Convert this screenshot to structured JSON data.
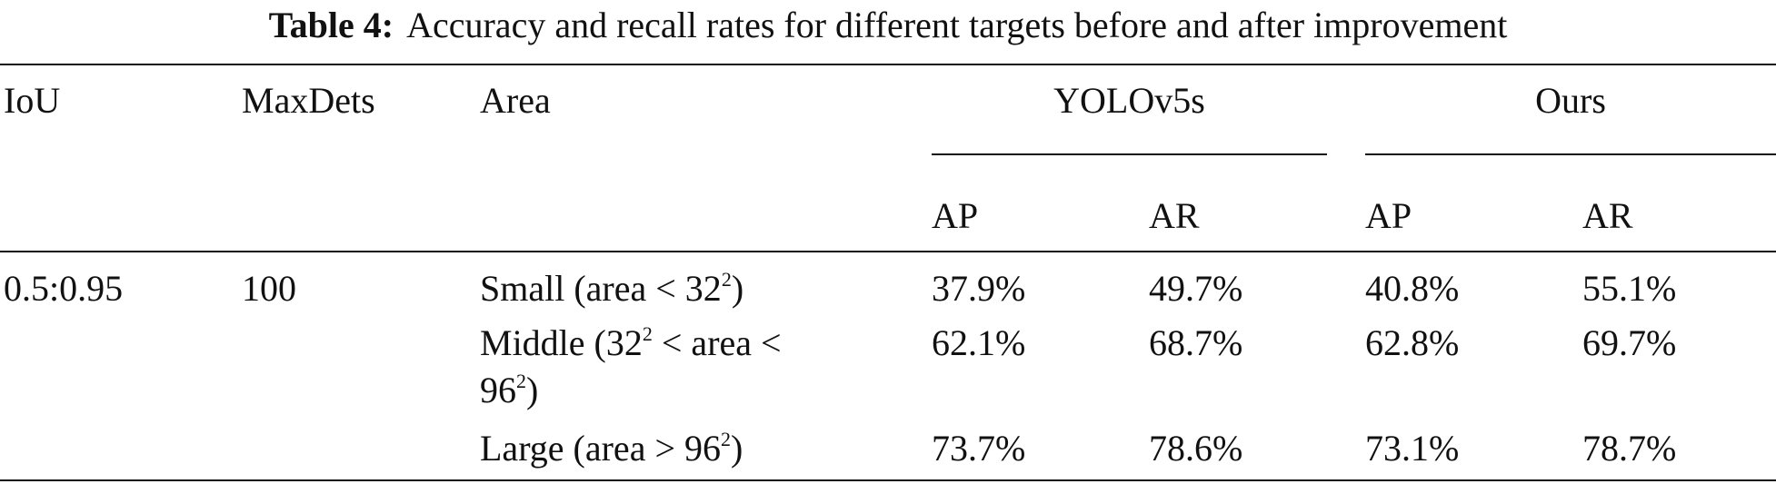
{
  "caption": {
    "label": "Table 4:",
    "text": "Accuracy and recall rates for different targets before and after improvement"
  },
  "table": {
    "headers": {
      "iou": "IoU",
      "maxdets": "MaxDets",
      "area": "Area",
      "group1": "YOLOv5s",
      "group2": "Ours",
      "ap": "AP",
      "ar": "AR"
    },
    "group_value": {
      "iou": "0.5:0.95",
      "maxdets": "100"
    },
    "rows": [
      {
        "area_pre": "Small (area < 32",
        "area_sup": "2",
        "area_post": ")",
        "yolo_ap": "37.9%",
        "yolo_ar": "49.7%",
        "ours_ap": "40.8%",
        "ours_ar": "55.1%"
      },
      {
        "area_line1_pre": "Middle (32",
        "area_line1_sup": "2",
        "area_line1_post": " < area <",
        "area_line2_pre": "96",
        "area_line2_sup": "2",
        "area_line2_post": ")",
        "yolo_ap": "62.1%",
        "yolo_ar": "68.7%",
        "ours_ap": "62.8%",
        "ours_ar": "69.7%"
      },
      {
        "area_pre": "Large (area > 96",
        "area_sup": "2",
        "area_post": ")",
        "yolo_ap": "73.7%",
        "yolo_ar": "78.6%",
        "ours_ap": "73.1%",
        "ours_ar": "78.7%"
      }
    ]
  }
}
